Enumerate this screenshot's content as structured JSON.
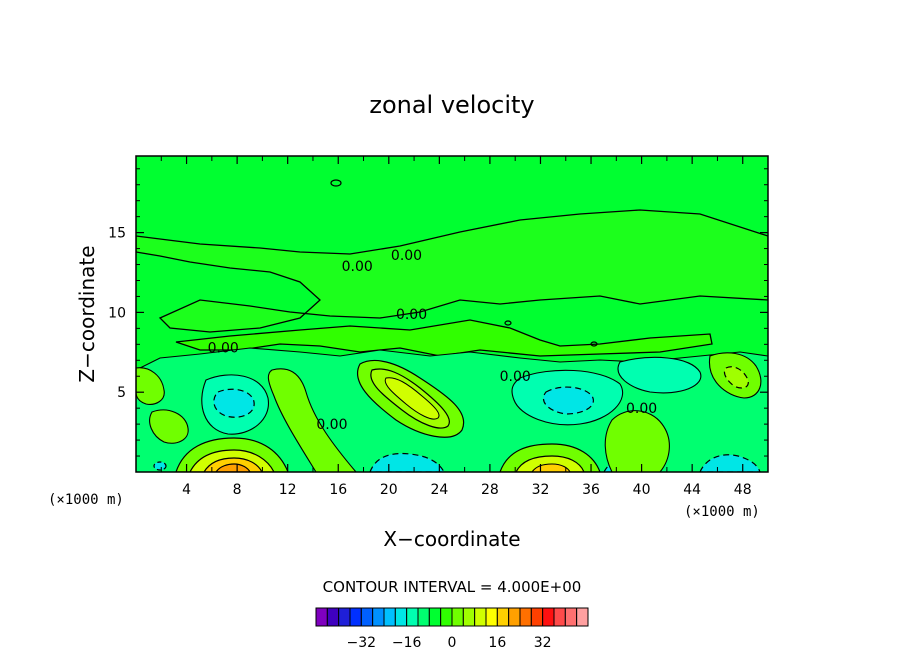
{
  "chart_data": {
    "type": "contour",
    "title": "zonal velocity",
    "xlabel": "X−coordinate",
    "ylabel": "Z−coordinate",
    "x_unit_left": "(×1000 m)",
    "x_unit_right": "(×1000 m)",
    "xlim": [
      0,
      50
    ],
    "ylim": [
      0,
      19.8
    ],
    "x_ticks": [
      4,
      8,
      12,
      16,
      20,
      24,
      28,
      32,
      36,
      40,
      44,
      48
    ],
    "y_ticks": [
      5,
      10,
      15
    ],
    "contour_interval_text": "CONTOUR INTERVAL = 4.000E+00",
    "contour_labels": [
      {
        "text": "0.00",
        "x": 17.5,
        "y": 12.9
      },
      {
        "text": "0.00",
        "x": 21.4,
        "y": 13.6
      },
      {
        "text": "0.00",
        "x": 21.8,
        "y": 9.9
      },
      {
        "text": "0.00",
        "x": 6.9,
        "y": 7.8
      },
      {
        "text": "0.00",
        "x": 15.5,
        "y": 3.0
      },
      {
        "text": "0.00",
        "x": 30.0,
        "y": 6.0
      },
      {
        "text": "0.00",
        "x": 40.0,
        "y": 4.0
      }
    ],
    "colorbar": {
      "colors": [
        "#7f00bf",
        "#3f00bf",
        "#1f1fd8",
        "#0030ff",
        "#0060ff",
        "#0090ff",
        "#00c0ff",
        "#00e6e6",
        "#00ffb0",
        "#00ff70",
        "#00ff30",
        "#30ff00",
        "#70ff00",
        "#a0ff00",
        "#d0ff00",
        "#ffff00",
        "#ffd000",
        "#ffa000",
        "#ff7000",
        "#ff4000",
        "#ff1010",
        "#ff4a4a",
        "#ff7070",
        "#ffa0a0"
      ],
      "tick_labels": [
        "−32",
        "−16",
        "0",
        "16",
        "32"
      ],
      "tick_values": [
        -32,
        -16,
        0,
        16,
        32
      ],
      "min": -48,
      "max": 48
    },
    "background_color": "#00ff30"
  }
}
